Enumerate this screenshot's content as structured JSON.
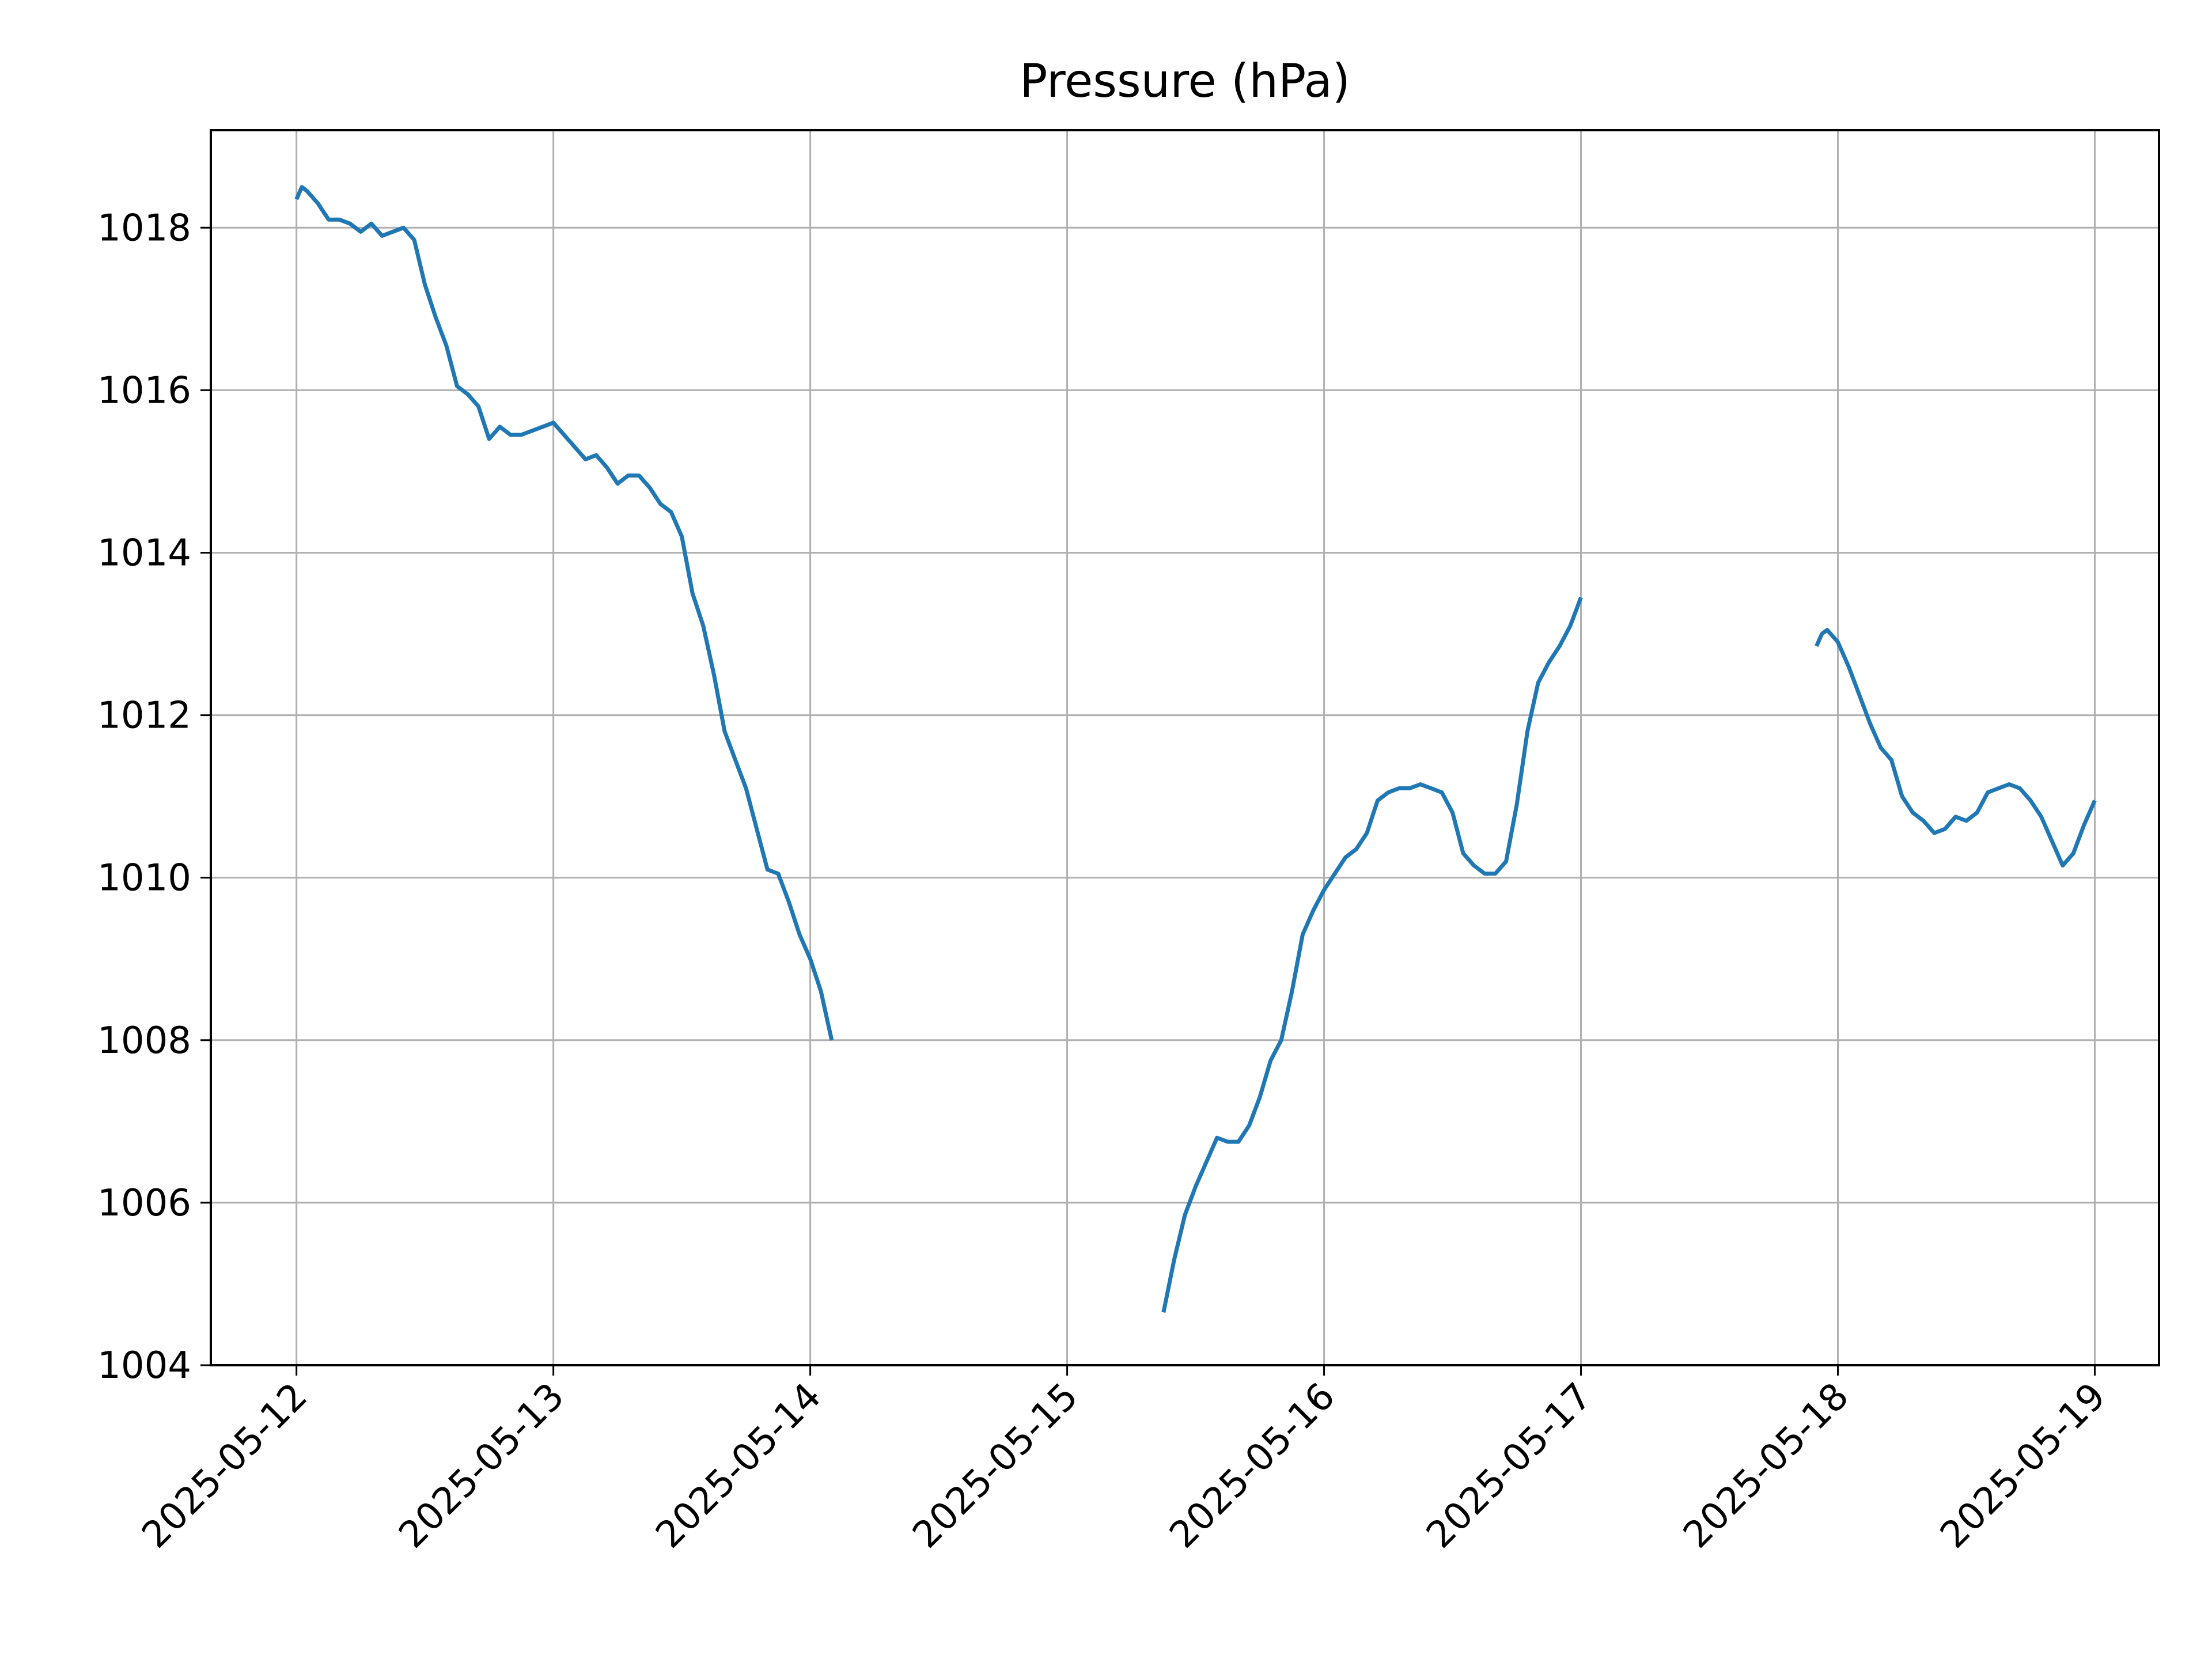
{
  "chart_data": {
    "type": "line",
    "title": "Pressure (hPa)",
    "xlabel": "",
    "ylabel": "",
    "xlim": [
      "2025-05-11 16:00",
      "2025-05-19 06:00"
    ],
    "ylim": [
      1004,
      1019.2
    ],
    "grid": true,
    "x_ticks": [
      "2025-05-12",
      "2025-05-13",
      "2025-05-14",
      "2025-05-15",
      "2025-05-16",
      "2025-05-17",
      "2025-05-18",
      "2025-05-19"
    ],
    "y_ticks": [
      "1004",
      "1006",
      "1008",
      "1010",
      "1012",
      "1014",
      "1016",
      "1018"
    ],
    "series": [
      {
        "color": "#1f77b4",
        "segments": [
          [
            [
              "2025-05-12 00:00",
              1018.35
            ],
            [
              "2025-05-12 00:30",
              1018.5
            ],
            [
              "2025-05-12 01:00",
              1018.45
            ],
            [
              "2025-05-12 02:00",
              1018.3
            ],
            [
              "2025-05-12 03:00",
              1018.1
            ],
            [
              "2025-05-12 04:00",
              1018.1
            ],
            [
              "2025-05-12 05:00",
              1018.05
            ],
            [
              "2025-05-12 06:00",
              1017.95
            ],
            [
              "2025-05-12 07:00",
              1018.05
            ],
            [
              "2025-05-12 08:00",
              1017.9
            ],
            [
              "2025-05-12 09:00",
              1017.95
            ],
            [
              "2025-05-12 10:00",
              1018.0
            ],
            [
              "2025-05-12 11:00",
              1017.85
            ],
            [
              "2025-05-12 12:00",
              1017.3
            ],
            [
              "2025-05-12 13:00",
              1016.9
            ],
            [
              "2025-05-12 14:00",
              1016.55
            ],
            [
              "2025-05-12 15:00",
              1016.05
            ],
            [
              "2025-05-12 16:00",
              1015.95
            ],
            [
              "2025-05-12 17:00",
              1015.8
            ],
            [
              "2025-05-12 18:00",
              1015.4
            ],
            [
              "2025-05-12 19:00",
              1015.55
            ],
            [
              "2025-05-12 20:00",
              1015.45
            ],
            [
              "2025-05-12 21:00",
              1015.45
            ],
            [
              "2025-05-12 22:00",
              1015.5
            ],
            [
              "2025-05-13 00:00",
              1015.6
            ],
            [
              "2025-05-13 01:00",
              1015.45
            ],
            [
              "2025-05-13 02:00",
              1015.3
            ],
            [
              "2025-05-13 03:00",
              1015.15
            ],
            [
              "2025-05-13 04:00",
              1015.2
            ],
            [
              "2025-05-13 05:00",
              1015.05
            ],
            [
              "2025-05-13 06:00",
              1014.85
            ],
            [
              "2025-05-13 07:00",
              1014.95
            ],
            [
              "2025-05-13 08:00",
              1014.95
            ],
            [
              "2025-05-13 09:00",
              1014.8
            ],
            [
              "2025-05-13 10:00",
              1014.6
            ],
            [
              "2025-05-13 11:00",
              1014.5
            ],
            [
              "2025-05-13 12:00",
              1014.2
            ],
            [
              "2025-05-13 13:00",
              1013.5
            ],
            [
              "2025-05-13 14:00",
              1013.1
            ],
            [
              "2025-05-13 15:00",
              1012.5
            ],
            [
              "2025-05-13 16:00",
              1011.8
            ],
            [
              "2025-05-13 17:00",
              1011.45
            ],
            [
              "2025-05-13 18:00",
              1011.1
            ],
            [
              "2025-05-13 19:00",
              1010.6
            ],
            [
              "2025-05-13 20:00",
              1010.1
            ],
            [
              "2025-05-13 21:00",
              1010.05
            ],
            [
              "2025-05-13 22:00",
              1009.7
            ],
            [
              "2025-05-13 23:00",
              1009.3
            ],
            [
              "2025-05-14 00:00",
              1009.0
            ],
            [
              "2025-05-14 01:00",
              1008.6
            ],
            [
              "2025-05-14 01:30",
              1008.3
            ],
            [
              "2025-05-14 02:00",
              1008.0
            ]
          ],
          [
            [
              "2025-05-15 09:00",
              1004.65
            ],
            [
              "2025-05-15 10:00",
              1005.3
            ],
            [
              "2025-05-15 11:00",
              1005.85
            ],
            [
              "2025-05-15 12:00",
              1006.2
            ],
            [
              "2025-05-15 13:00",
              1006.5
            ],
            [
              "2025-05-15 14:00",
              1006.8
            ],
            [
              "2025-05-15 15:00",
              1006.75
            ],
            [
              "2025-05-15 16:00",
              1006.75
            ],
            [
              "2025-05-15 17:00",
              1006.95
            ],
            [
              "2025-05-15 18:00",
              1007.3
            ],
            [
              "2025-05-15 19:00",
              1007.75
            ],
            [
              "2025-05-15 20:00",
              1008.0
            ],
            [
              "2025-05-15 21:00",
              1008.6
            ],
            [
              "2025-05-15 22:00",
              1009.3
            ],
            [
              "2025-05-15 23:00",
              1009.6
            ],
            [
              "2025-05-16 00:00",
              1009.85
            ],
            [
              "2025-05-16 01:00",
              1010.05
            ],
            [
              "2025-05-16 02:00",
              1010.25
            ],
            [
              "2025-05-16 03:00",
              1010.35
            ],
            [
              "2025-05-16 04:00",
              1010.55
            ],
            [
              "2025-05-16 05:00",
              1010.95
            ],
            [
              "2025-05-16 06:00",
              1011.05
            ],
            [
              "2025-05-16 07:00",
              1011.1
            ],
            [
              "2025-05-16 08:00",
              1011.1
            ],
            [
              "2025-05-16 09:00",
              1011.15
            ],
            [
              "2025-05-16 10:00",
              1011.1
            ],
            [
              "2025-05-16 11:00",
              1011.05
            ],
            [
              "2025-05-16 12:00",
              1010.8
            ],
            [
              "2025-05-16 13:00",
              1010.3
            ],
            [
              "2025-05-16 14:00",
              1010.15
            ],
            [
              "2025-05-16 15:00",
              1010.05
            ],
            [
              "2025-05-16 16:00",
              1010.05
            ],
            [
              "2025-05-16 17:00",
              1010.2
            ],
            [
              "2025-05-16 18:00",
              1010.9
            ],
            [
              "2025-05-16 19:00",
              1011.8
            ],
            [
              "2025-05-16 20:00",
              1012.4
            ],
            [
              "2025-05-16 21:00",
              1012.65
            ],
            [
              "2025-05-16 22:00",
              1012.85
            ],
            [
              "2025-05-16 23:00",
              1013.1
            ],
            [
              "2025-05-17 00:00",
              1013.45
            ]
          ],
          [
            [
              "2025-05-17 22:00",
              1012.85
            ],
            [
              "2025-05-17 22:30",
              1013.0
            ],
            [
              "2025-05-17 23:00",
              1013.05
            ],
            [
              "2025-05-18 00:00",
              1012.9
            ],
            [
              "2025-05-18 01:00",
              1012.6
            ],
            [
              "2025-05-18 02:00",
              1012.25
            ],
            [
              "2025-05-18 03:00",
              1011.9
            ],
            [
              "2025-05-18 04:00",
              1011.6
            ],
            [
              "2025-05-18 05:00",
              1011.45
            ],
            [
              "2025-05-18 06:00",
              1011.0
            ],
            [
              "2025-05-18 07:00",
              1010.8
            ],
            [
              "2025-05-18 08:00",
              1010.7
            ],
            [
              "2025-05-18 09:00",
              1010.55
            ],
            [
              "2025-05-18 10:00",
              1010.6
            ],
            [
              "2025-05-18 11:00",
              1010.75
            ],
            [
              "2025-05-18 12:00",
              1010.7
            ],
            [
              "2025-05-18 13:00",
              1010.8
            ],
            [
              "2025-05-18 14:00",
              1011.05
            ],
            [
              "2025-05-18 15:00",
              1011.1
            ],
            [
              "2025-05-18 16:00",
              1011.15
            ],
            [
              "2025-05-18 17:00",
              1011.1
            ],
            [
              "2025-05-18 18:00",
              1010.95
            ],
            [
              "2025-05-18 19:00",
              1010.75
            ],
            [
              "2025-05-18 20:00",
              1010.45
            ],
            [
              "2025-05-18 21:00",
              1010.15
            ],
            [
              "2025-05-18 22:00",
              1010.3
            ],
            [
              "2025-05-18 23:00",
              1010.65
            ],
            [
              "2025-05-19 00:00",
              1010.95
            ]
          ]
        ]
      }
    ]
  }
}
